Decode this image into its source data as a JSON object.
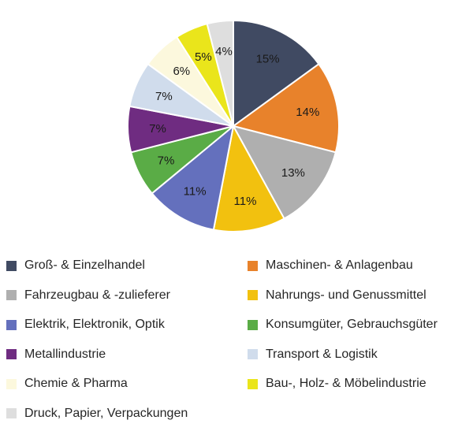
{
  "chart_data": {
    "type": "pie",
    "slices": [
      {
        "label": "Groß- & Einzelhandel",
        "value": 15,
        "display": "15%",
        "color": "#404a62"
      },
      {
        "label": "Maschinen- & Anlagenbau",
        "value": 14,
        "display": "14%",
        "color": "#e8822b"
      },
      {
        "label": "Fahrzeugbau & -zulieferer",
        "value": 13,
        "display": "13%",
        "color": "#afafaf"
      },
      {
        "label": "Nahrungs- und Genussmittel",
        "value": 11,
        "display": "11%",
        "color": "#f2c10f"
      },
      {
        "label": "Elektrik, Elektronik, Optik",
        "value": 11,
        "display": "11%",
        "color": "#6470bd"
      },
      {
        "label": "Konsumgüter, Gebrauchsgüter",
        "value": 7,
        "display": "7%",
        "color": "#5aac46"
      },
      {
        "label": "Metallindustrie",
        "value": 7,
        "display": "7%",
        "color": "#6f2c81"
      },
      {
        "label": "Transport & Logistik",
        "value": 7,
        "display": "7%",
        "color": "#d0dcec"
      },
      {
        "label": "Chemie & Pharma",
        "value": 6,
        "display": "6%",
        "color": "#fcf8dd"
      },
      {
        "label": "Bau-, Holz- & Möbelindustrie",
        "value": 5,
        "display": "5%",
        "color": "#eae51b"
      },
      {
        "label": "Druck, Papier, Verpackungen",
        "value": 4,
        "display": "4%",
        "color": "#dedede"
      }
    ],
    "start_angle": "12 o'clock",
    "direction": "clockwise",
    "legend_position": "bottom",
    "legend_columns": 2
  }
}
